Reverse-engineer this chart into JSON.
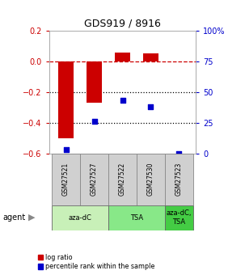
{
  "title": "GDS919 / 8916",
  "samples": [
    "GSM27521",
    "GSM27527",
    "GSM27522",
    "GSM27530",
    "GSM27523"
  ],
  "log_ratios": [
    -0.5,
    -0.27,
    0.06,
    0.05,
    0.0
  ],
  "percentile_ranks": [
    3,
    26,
    43,
    38,
    0
  ],
  "agents": [
    {
      "label": "aza-dC",
      "span": [
        0,
        2
      ],
      "color": "#c8f0b8"
    },
    {
      "label": "TSA",
      "span": [
        2,
        4
      ],
      "color": "#88e888"
    },
    {
      "label": "aza-dC,\nTSA",
      "span": [
        4,
        5
      ],
      "color": "#44cc44"
    }
  ],
  "ylim_left": [
    -0.6,
    0.2
  ],
  "ylim_right": [
    0,
    100
  ],
  "yticks_left": [
    -0.6,
    -0.4,
    -0.2,
    0.0,
    0.2
  ],
  "yticks_right": [
    0,
    25,
    50,
    75,
    100
  ],
  "bar_color": "#cc0000",
  "scatter_color": "#0000cc",
  "dashed_line_color": "#cc0000",
  "dotted_line_color": "#000000",
  "background_color": "#ffffff",
  "plot_bg": "#ffffff",
  "label_bg": "#d0d0d0",
  "agent_label": "agent"
}
